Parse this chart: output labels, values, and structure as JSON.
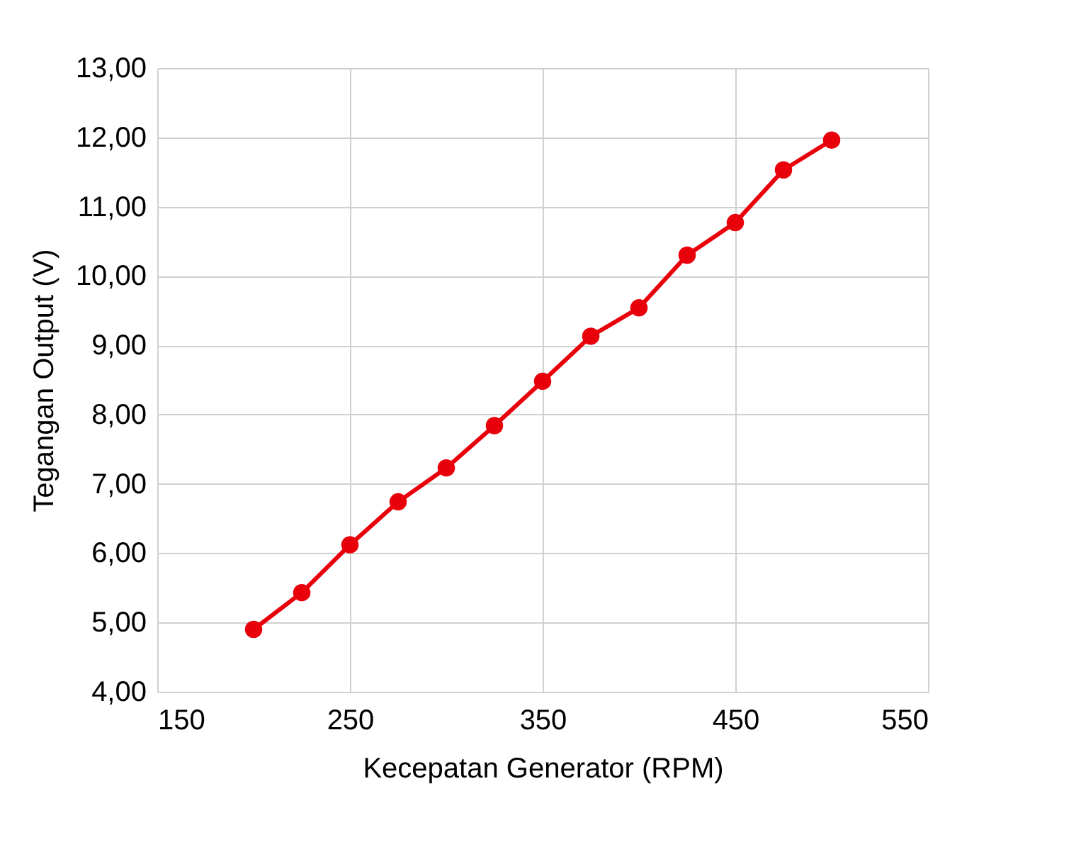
{
  "chart_data": {
    "type": "line",
    "xlabel": "Kecepatan Generator (RPM)",
    "ylabel": "Tegangan Output (V)",
    "x": [
      200,
      225,
      250,
      275,
      300,
      325,
      350,
      375,
      400,
      425,
      450,
      475,
      500
    ],
    "series": [
      {
        "color": "#e8000b",
        "values": [
          4.9,
          5.43,
          6.12,
          6.74,
          7.23,
          7.84,
          8.48,
          9.13,
          9.54,
          10.3,
          10.77,
          11.53,
          11.96
        ]
      }
    ],
    "xlim": [
      150,
      550
    ],
    "xticks": [
      150,
      250,
      350,
      450,
      550
    ],
    "ylim": [
      4,
      13
    ],
    "yticks": [
      {
        "value": 4,
        "label": "4,00"
      },
      {
        "value": 5,
        "label": "5,00"
      },
      {
        "value": 6,
        "label": "6,00"
      },
      {
        "value": 7,
        "label": "7,00"
      },
      {
        "value": 8,
        "label": "8,00"
      },
      {
        "value": 9,
        "label": "9,00"
      },
      {
        "value": 10,
        "label": "10,00"
      },
      {
        "value": 11,
        "label": "11,00"
      },
      {
        "value": 12,
        "label": "12,00"
      },
      {
        "value": 13,
        "label": "13,00"
      }
    ],
    "grid": true,
    "marker": "circle",
    "line_style": "solid",
    "legend": false
  }
}
